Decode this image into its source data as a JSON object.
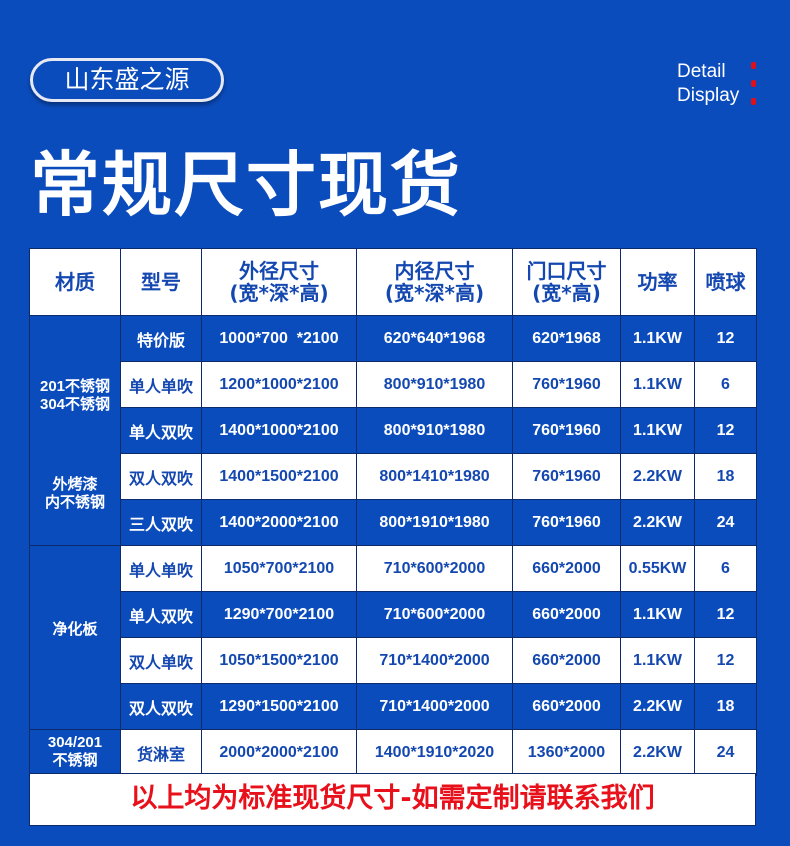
{
  "brand": "山东盛之源",
  "detail": [
    "Detail",
    "Display"
  ],
  "title": "常规尺寸现货",
  "colors": {
    "background": "#0b4cbd",
    "text_blue": "#1448b0",
    "footer_red": "#e8101a"
  },
  "headers": [
    "材质",
    "型号",
    [
      "外径尺寸",
      "(宽*深*高)"
    ],
    [
      "内径尺寸",
      "(宽*深*高)"
    ],
    [
      "门口尺寸",
      "(宽*高)"
    ],
    "功率",
    "喷球"
  ],
  "groups": [
    {
      "material": [
        "201不锈钢\n304不锈钢",
        "外烤漆\n内不锈钢"
      ],
      "rows": [
        [
          "特价版",
          "1000*700  *2100",
          "620*640*1968",
          "620*1968",
          "1.1KW",
          "12"
        ],
        [
          "单人单吹",
          "1200*1000*2100",
          "800*910*1980",
          "760*1960",
          "1.1KW",
          "6"
        ],
        [
          "单人双吹",
          "1400*1000*2100",
          "800*910*1980",
          "760*1960",
          "1.1KW",
          "12"
        ],
        [
          "双人双吹",
          "1400*1500*2100",
          "800*1410*1980",
          "760*1960",
          "2.2KW",
          "18"
        ],
        [
          "三人双吹",
          "1400*2000*2100",
          "800*1910*1980",
          "760*1960",
          "2.2KW",
          "24"
        ]
      ]
    },
    {
      "material": [
        "净化板"
      ],
      "rows": [
        [
          "单人单吹",
          "1050*700*2100",
          "710*600*2000",
          "660*2000",
          "0.55KW",
          "6"
        ],
        [
          "单人双吹",
          "1290*700*2100",
          "710*600*2000",
          "660*2000",
          "1.1KW",
          "12"
        ],
        [
          "双人单吹",
          "1050*1500*2100",
          "710*1400*2000",
          "660*2000",
          "1.1KW",
          "12"
        ],
        [
          "双人双吹",
          "1290*1500*2100",
          "710*1400*2000",
          "660*2000",
          "2.2KW",
          "18"
        ]
      ]
    },
    {
      "material": [
        "304/201\n不锈钢"
      ],
      "rows": [
        [
          "货淋室",
          "2000*2000*2100",
          "1400*1910*2020",
          "1360*2000",
          "2.2KW",
          "24"
        ]
      ]
    }
  ],
  "footer": "以上均为标准现货尺寸-如需定制请联系我们"
}
